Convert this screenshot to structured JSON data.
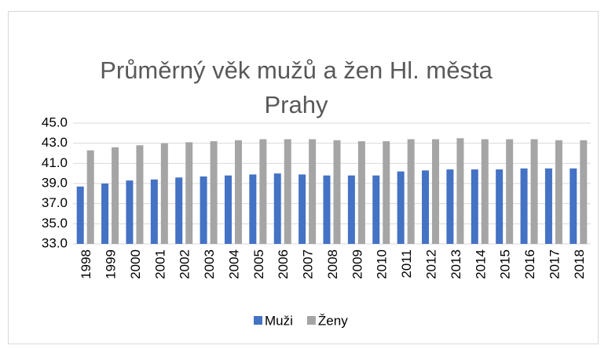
{
  "chart_data": {
    "type": "bar",
    "title": "Průměrný věk mužů a žen Hl. města Prahy",
    "categories": [
      "1998",
      "1999",
      "2000",
      "2001",
      "2002",
      "2003",
      "2004",
      "2005",
      "2006",
      "2007",
      "2008",
      "2009",
      "2010",
      "2011",
      "2012",
      "2013",
      "2014",
      "2015",
      "2016",
      "2017",
      "2018"
    ],
    "series": [
      {
        "name": "Muži",
        "color": "#4472c4",
        "values": [
          38.7,
          39.0,
          39.3,
          39.4,
          39.6,
          39.7,
          39.8,
          39.9,
          40.0,
          39.9,
          39.8,
          39.8,
          39.8,
          40.2,
          40.3,
          40.4,
          40.4,
          40.4,
          40.5,
          40.5,
          40.5
        ]
      },
      {
        "name": "Ženy",
        "color": "#a5a5a5",
        "values": [
          42.3,
          42.6,
          42.8,
          43.0,
          43.1,
          43.2,
          43.3,
          43.4,
          43.4,
          43.4,
          43.3,
          43.2,
          43.2,
          43.4,
          43.4,
          43.5,
          43.4,
          43.4,
          43.4,
          43.3,
          43.3
        ]
      }
    ],
    "ylim": [
      33,
      45
    ],
    "yticks": [
      {
        "value": 33,
        "label": "33.0"
      },
      {
        "value": 35,
        "label": "35.0"
      },
      {
        "value": 37,
        "label": "37.0"
      },
      {
        "value": 39,
        "label": "39.0"
      },
      {
        "value": 41,
        "label": "41.0"
      },
      {
        "value": 43,
        "label": "43.0"
      },
      {
        "value": 45,
        "label": "45.0"
      }
    ],
    "grid": true,
    "legend": "bottom"
  }
}
